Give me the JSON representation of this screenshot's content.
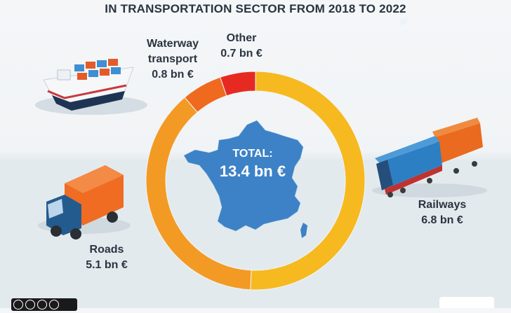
{
  "title": "IN TRANSPORTATION SECTOR FROM 2018 TO 2022",
  "total": {
    "label": "TOTAL:",
    "value": "13.4 bn €"
  },
  "labels": {
    "waterway": {
      "name_line1": "Waterway",
      "name_line2": "transport",
      "value": "0.8 bn €"
    },
    "other": {
      "name": "Other",
      "value": "0.7 bn €"
    },
    "railways": {
      "name": "Railways",
      "value": "6.8 bn €"
    },
    "roads": {
      "name": "Roads",
      "value": "5.1 bn €"
    }
  },
  "chart_data": {
    "type": "pie",
    "title": "IN TRANSPORTATION SECTOR FROM 2018 TO 2022",
    "unit": "bn €",
    "total": 13.4,
    "categories": [
      "Railways",
      "Roads",
      "Waterway transport",
      "Other"
    ],
    "values": [
      6.8,
      5.1,
      0.8,
      0.7
    ],
    "colors": [
      "#f6b91f",
      "#f39a24",
      "#ef6a1f",
      "#e62a22"
    ],
    "donut": true,
    "start_angle_deg": 0,
    "direction": "clockwise"
  },
  "colors": {
    "text": "#2a3440",
    "map_fill": "#3d82c6",
    "map_dot": "#2f6fae"
  },
  "icons": [
    "cargo-ship-icon",
    "train-icon",
    "truck-icon",
    "france-map-icon",
    "creative-commons-icon"
  ]
}
